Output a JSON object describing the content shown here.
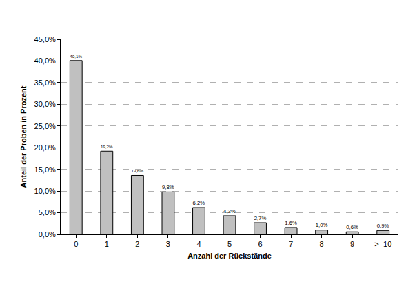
{
  "chart_data": {
    "type": "bar",
    "x_label": "Anzahl der Rückstände",
    "y_label": "Anteil der Proben in Prozent",
    "categories": [
      "0",
      "1",
      "2",
      "3",
      "4",
      "5",
      "6",
      "7",
      "8",
      "9",
      ">=10"
    ],
    "values": [
      40.1,
      19.2,
      13.6,
      9.8,
      6.2,
      4.3,
      2.7,
      1.6,
      1.0,
      0.6,
      0.9
    ],
    "value_labels": [
      "40,1%",
      "19,2%",
      "13,6%",
      "9,8%",
      "6,2%",
      "4,3%",
      "2,7%",
      "1,6%",
      "1,0%",
      "0,6%",
      "0,9%"
    ],
    "color": "#c0c0c0",
    "ylim": [
      0,
      45
    ],
    "yticks": [
      {
        "value": 0,
        "label": "0,0%"
      },
      {
        "value": 5,
        "label": "5,0%"
      },
      {
        "value": 10,
        "label": "10,0%"
      },
      {
        "value": 15,
        "label": "15,0%"
      },
      {
        "value": 20,
        "label": "20,0%"
      },
      {
        "value": 25,
        "label": "25,0%"
      },
      {
        "value": 30,
        "label": "30,0%"
      },
      {
        "value": 35,
        "label": "35,0%"
      },
      {
        "value": 40,
        "label": "40,0%"
      },
      {
        "value": 45,
        "label": "45,0%"
      }
    ],
    "grid": true,
    "data_labels": true
  }
}
